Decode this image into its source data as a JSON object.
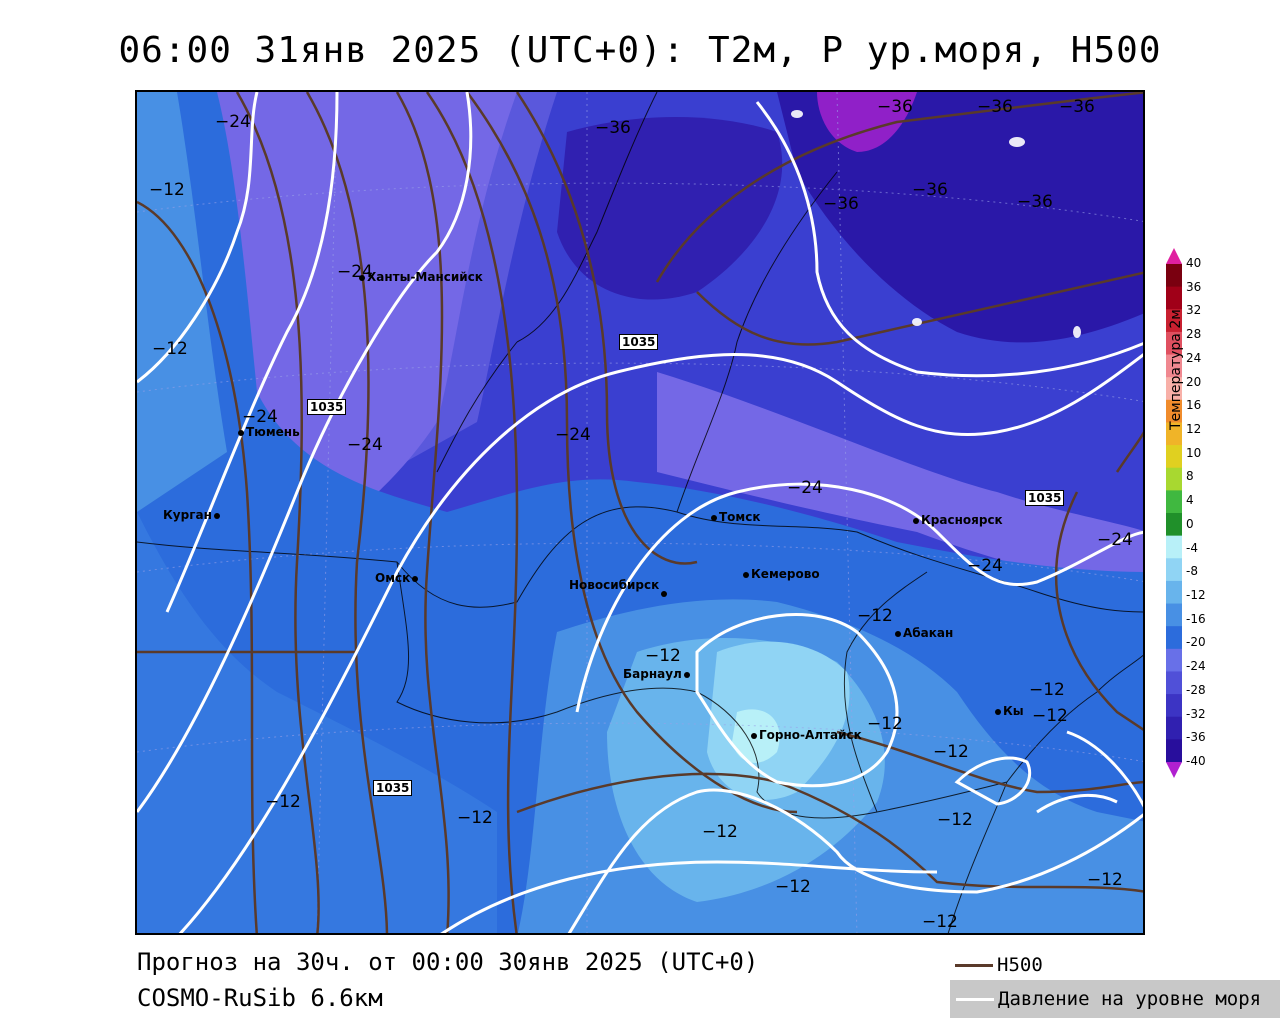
{
  "title": "06:00 31янв 2025 (UTC+0): T2м, P ур.моря, H500",
  "footer": {
    "forecast": "Прогноз на 30ч. от 00:00 30янв 2025 (UTC+0)",
    "model": "COSMO-RuSib 6.6км"
  },
  "legend": {
    "h500": "H500",
    "pressure": "Давление на уровне моря"
  },
  "colorbar": {
    "title": "Температура 2м",
    "ticks": [
      "40",
      "36",
      "32",
      "28",
      "24",
      "20",
      "16",
      "12",
      "10",
      "8",
      "4",
      "0",
      "-4",
      "-8",
      "-12",
      "-16",
      "-20",
      "-24",
      "-28",
      "-32",
      "-36",
      "-40"
    ],
    "colors": [
      "#7a0010",
      "#a00018",
      "#c82030",
      "#e05060",
      "#f08890",
      "#f8b0a8",
      "#f08c2c",
      "#f0b428",
      "#e0d020",
      "#a8d830",
      "#40b840",
      "#20902a",
      "#b8f0f8",
      "#90d4f4",
      "#68b4ec",
      "#4890e4",
      "#2c6cdc",
      "#6870e8",
      "#5050d8",
      "#3c34c4",
      "#3020b0",
      "#280e9c"
    ],
    "top_color": "#e020a0",
    "bottom_color": "#b020d0"
  },
  "cities": [
    {
      "name": "Ханты-Мансийск"
    },
    {
      "name": "Тюмень"
    },
    {
      "name": "Курган"
    },
    {
      "name": "Омск"
    },
    {
      "name": "Томск"
    },
    {
      "name": "Красноярск"
    },
    {
      "name": "Кемерово"
    },
    {
      "name": "Новосибирск"
    },
    {
      "name": "Абакан"
    },
    {
      "name": "Барнаул"
    },
    {
      "name": "Кы"
    },
    {
      "name": "Горно-Алтайск"
    }
  ],
  "isotherm_labels": {
    "m24": "−24",
    "m12": "−12",
    "m36": "−36"
  },
  "pressure_label": "1035"
}
